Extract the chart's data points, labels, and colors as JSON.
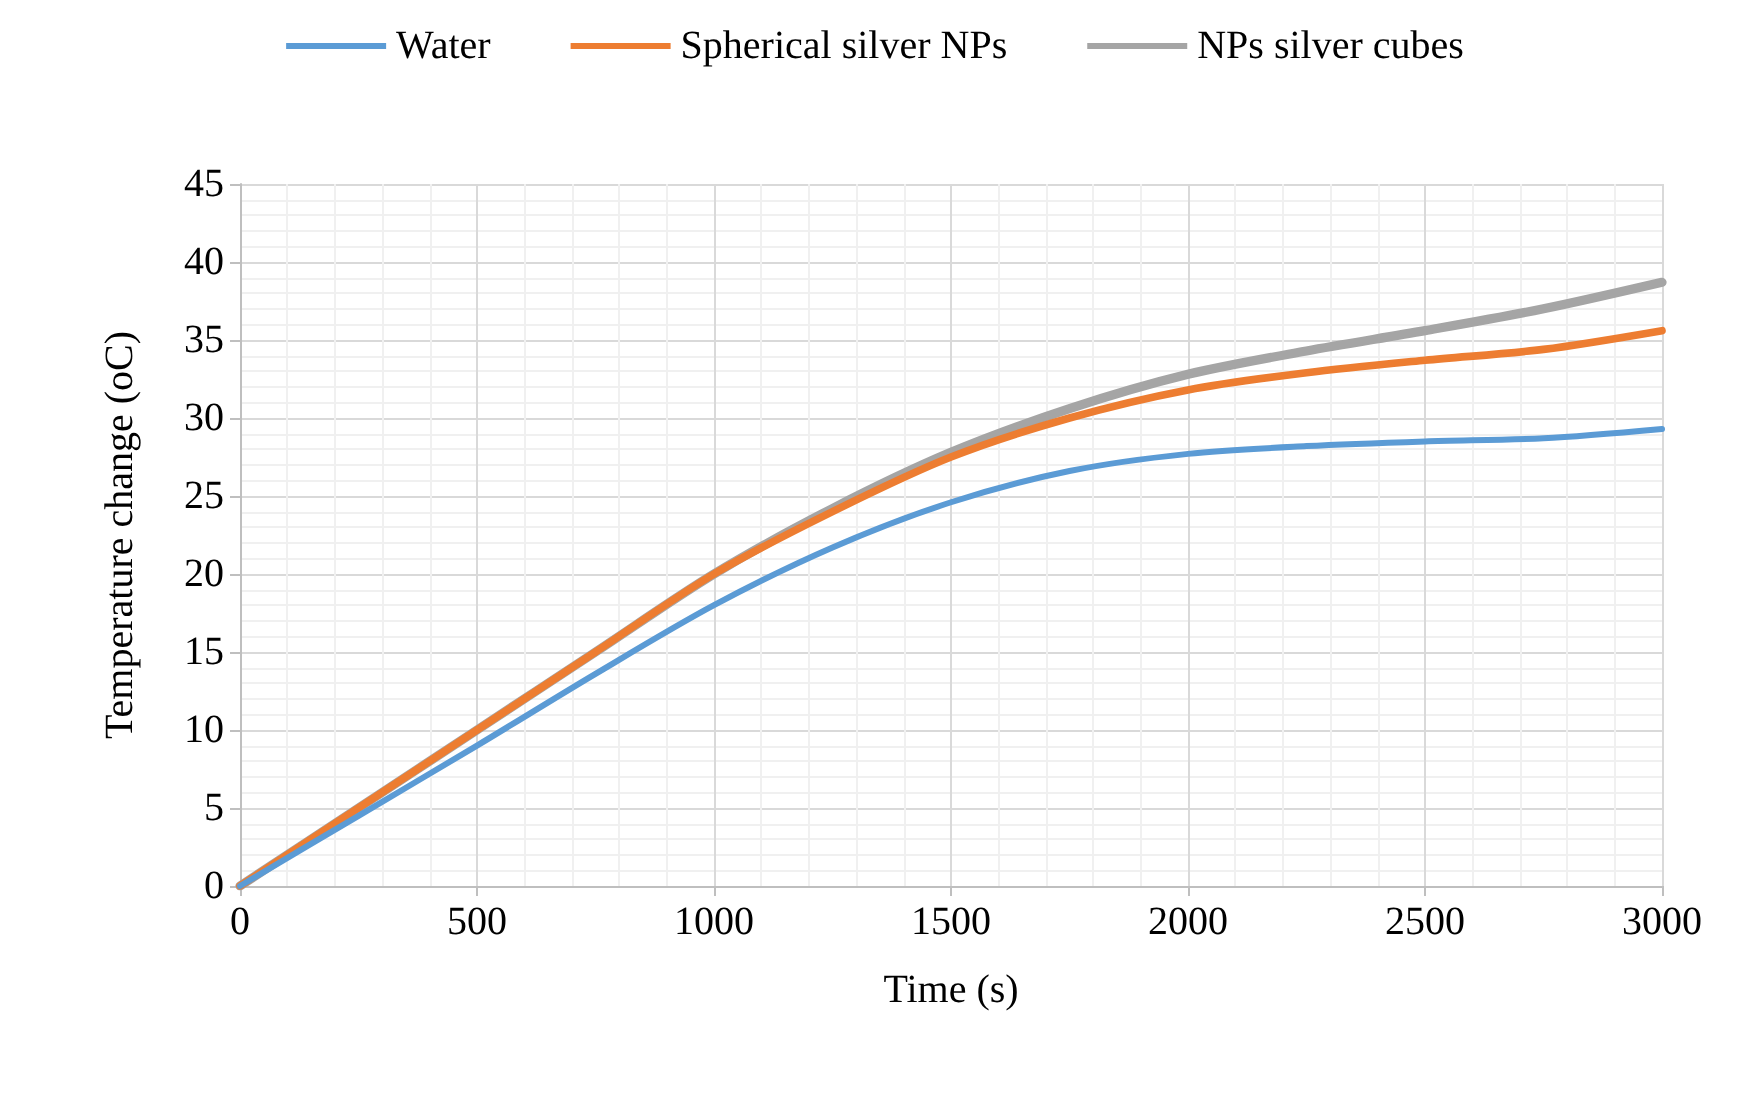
{
  "chart_data": {
    "type": "line",
    "xlabel": "Time (s)",
    "ylabel": "Temperature change (oC)",
    "x": [
      0,
      250,
      500,
      750,
      1000,
      1250,
      1500,
      1750,
      2000,
      2250,
      2500,
      2750,
      3000
    ],
    "series": [
      {
        "name": "Water",
        "color": "#5b9bd5",
        "values": [
          0,
          4.5,
          9,
          13.6,
          18,
          21.7,
          24.6,
          26.6,
          27.7,
          28.2,
          28.5,
          28.7,
          29.3
        ]
      },
      {
        "name": "Spherical silver NPs",
        "color": "#ed7d31",
        "values": [
          0,
          5,
          10,
          15,
          20,
          24,
          27.5,
          30,
          31.8,
          32.9,
          33.7,
          34.4,
          35.6
        ]
      },
      {
        "name": "NPs silver cubes",
        "color": "#a5a5a5",
        "values": [
          0,
          5,
          10,
          15,
          20,
          24.2,
          27.8,
          30.6,
          32.8,
          34.3,
          35.6,
          37,
          38.7
        ]
      }
    ],
    "xlim": [
      0,
      3000
    ],
    "xticks": [
      0,
      500,
      1000,
      1500,
      2000,
      2500,
      3000
    ],
    "ylim": [
      0,
      45
    ],
    "yticks": [
      0,
      5,
      10,
      15,
      20,
      25,
      30,
      35,
      40,
      45
    ],
    "grid": true,
    "legend": "top",
    "marker": "none",
    "line_style": "solid"
  }
}
